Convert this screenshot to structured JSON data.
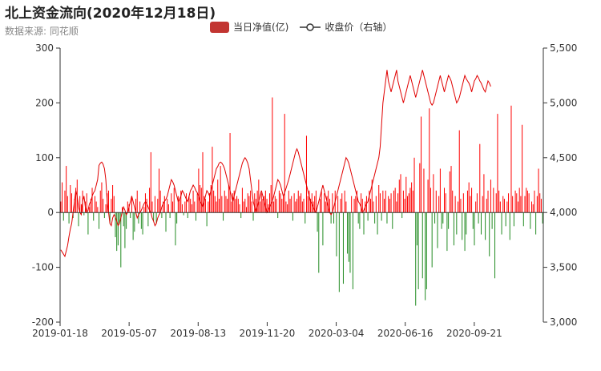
{
  "header": {
    "title": "北上资金流向(2020年12月18日)",
    "subtitle": "数据来源: 同花顺"
  },
  "legend": {
    "bar_label": "当日净值(亿)",
    "line_label": "收盘价（右轴）"
  },
  "colors": {
    "positive_bar": "#ff0000",
    "negative_bar": "#228b22",
    "line": "#e00000",
    "legend_bar": "#c23531",
    "axis": "#333333"
  },
  "chart_data": {
    "type": "bar+line",
    "x_ticks": [
      "2019-01-18",
      "2019-05-07",
      "2019-08-13",
      "2019-11-20",
      "2020-03-04",
      "2020-06-16",
      "2020-09-21"
    ],
    "left_axis": {
      "ylim": [
        -200,
        300
      ],
      "ticks": [
        "-200",
        "-100",
        "0",
        "100",
        "200",
        "300"
      ]
    },
    "right_axis": {
      "ylim": [
        3000,
        5500
      ],
      "ticks": [
        "3,000",
        "3,500",
        "4,000",
        "4,500",
        "5,000",
        "5,500"
      ]
    },
    "series": [
      {
        "name": "当日净值(亿)",
        "type": "bar",
        "values": [
          20,
          55,
          -15,
          40,
          85,
          30,
          -20,
          50,
          35,
          -10,
          25,
          45,
          60,
          -25,
          30,
          15,
          40,
          -5,
          20,
          35,
          -40,
          10,
          25,
          45,
          -15,
          30,
          20,
          10,
          -30,
          40,
          55,
          25,
          -10,
          15,
          35,
          40,
          -20,
          25,
          50,
          30,
          -45,
          -70,
          -60,
          -20,
          -100,
          10,
          -25,
          -65,
          -30,
          20,
          15,
          -10,
          30,
          -50,
          -35,
          25,
          40,
          -20,
          20,
          -30,
          -40,
          10,
          35,
          25,
          -25,
          45,
          110,
          20,
          -15,
          30,
          -20,
          25,
          80,
          40,
          -10,
          20,
          30,
          -35,
          25,
          15,
          -10,
          35,
          20,
          45,
          -60,
          -20,
          30,
          25,
          40,
          15,
          -5,
          20,
          35,
          -10,
          30,
          25,
          15,
          40,
          20,
          -15,
          35,
          80,
          50,
          45,
          110,
          30,
          25,
          -25,
          20,
          35,
          50,
          120,
          40,
          30,
          20,
          60,
          25,
          85,
          30,
          -15,
          40,
          30,
          25,
          50,
          145,
          20,
          35,
          40,
          25,
          30,
          25,
          15,
          -10,
          45,
          20,
          25,
          10,
          35,
          30,
          40,
          20,
          -15,
          35,
          25,
          40,
          60,
          20,
          35,
          25,
          30,
          40,
          25,
          15,
          35,
          50,
          210,
          20,
          30,
          25,
          -10,
          40,
          35,
          25,
          30,
          180,
          20,
          15,
          40,
          25,
          30,
          -15,
          35,
          20,
          25,
          40,
          30,
          35,
          20,
          25,
          -20,
          140,
          30,
          40,
          25,
          35,
          20,
          30,
          40,
          -35,
          -110,
          25,
          40,
          -60,
          35,
          20,
          30,
          40,
          25,
          -20,
          35,
          -20,
          40,
          -80,
          30,
          -145,
          25,
          35,
          -130,
          40,
          20,
          -75,
          -90,
          -110,
          30,
          -140,
          25,
          30,
          40,
          -20,
          -30,
          35,
          25,
          -40,
          20,
          30,
          -15,
          40,
          25,
          60,
          20,
          -20,
          30,
          -40,
          50,
          35,
          -15,
          40,
          25,
          40,
          -20,
          30,
          25,
          35,
          -30,
          40,
          45,
          20,
          35,
          60,
          70,
          -10,
          40,
          25,
          65,
          30,
          35,
          45,
          55,
          40,
          100,
          -170,
          -60,
          -140,
          90,
          175,
          -120,
          80,
          -160,
          -140,
          60,
          190,
          45,
          -100,
          70,
          -20,
          40,
          -65,
          30,
          80,
          -30,
          -20,
          45,
          35,
          -70,
          -30,
          75,
          85,
          40,
          -60,
          30,
          -40,
          20,
          150,
          25,
          -50,
          35,
          -70,
          -40,
          40,
          55,
          30,
          45,
          -30,
          -60,
          20,
          35,
          -20,
          125,
          -40,
          30,
          70,
          -50,
          25,
          40,
          -80,
          60,
          -30,
          45,
          -120,
          35,
          180,
          40,
          20,
          -40,
          30,
          25,
          -25,
          20,
          35,
          -50,
          195,
          30,
          -25,
          40,
          35,
          20,
          45,
          30,
          160,
          -25,
          30,
          45,
          40,
          35,
          -30,
          20,
          15,
          40,
          -40,
          30,
          80,
          35,
          25,
          -20
        ]
      },
      {
        "name": "收盘价（右轴）",
        "type": "line",
        "values": [
          3660,
          3640,
          3620,
          3600,
          3650,
          3700,
          3780,
          3850,
          3900,
          4000,
          4100,
          4200,
          4150,
          4050,
          4000,
          3980,
          4100,
          4150,
          4050,
          4000,
          4020,
          4080,
          4100,
          4150,
          4180,
          4200,
          4250,
          4300,
          4430,
          4450,
          4460,
          4440,
          4400,
          4300,
          4100,
          4000,
          3900,
          3880,
          3950,
          3980,
          3960,
          3920,
          3880,
          3900,
          3950,
          4000,
          4050,
          4020,
          3980,
          4000,
          4050,
          4100,
          4150,
          4100,
          4050,
          4000,
          3950,
          3980,
          4000,
          4020,
          4050,
          4080,
          4100,
          4080,
          4050,
          4020,
          4000,
          3950,
          3920,
          3880,
          3900,
          3950,
          3980,
          4000,
          4050,
          4080,
          4100,
          4120,
          4150,
          4200,
          4250,
          4300,
          4280,
          4250,
          4200,
          4150,
          4100,
          4120,
          4150,
          4200,
          4180,
          4150,
          4120,
          4100,
          4150,
          4200,
          4220,
          4250,
          4230,
          4200,
          4180,
          4150,
          4100,
          4080,
          4050,
          4100,
          4150,
          4200,
          4180,
          4150,
          4200,
          4250,
          4300,
          4350,
          4400,
          4420,
          4450,
          4460,
          4450,
          4430,
          4400,
          4350,
          4300,
          4250,
          4200,
          4150,
          4100,
          4150,
          4200,
          4250,
          4300,
          4350,
          4400,
          4450,
          4480,
          4500,
          4480,
          4450,
          4400,
          4300,
          4200,
          4100,
          4050,
          4000,
          4050,
          4100,
          4150,
          4200,
          4150,
          4100,
          4050,
          4000,
          4020,
          4050,
          4080,
          4100,
          4150,
          4200,
          4250,
          4300,
          4280,
          4250,
          4200,
          4150,
          4180,
          4220,
          4260,
          4300,
          4350,
          4400,
          4450,
          4500,
          4550,
          4580,
          4550,
          4500,
          4450,
          4400,
          4350,
          4300,
          4250,
          4200,
          4150,
          4100,
          4080,
          4050,
          4020,
          4000,
          4050,
          4100,
          4150,
          4200,
          4250,
          4200,
          4150,
          4100,
          4050,
          4000,
          3980,
          4000,
          4050,
          4100,
          4150,
          4200,
          4250,
          4300,
          4350,
          4400,
          4450,
          4500,
          4480,
          4450,
          4400,
          4350,
          4300,
          4250,
          4200,
          4150,
          4100,
          4080,
          4050,
          4000,
          4020,
          4050,
          4080,
          4100,
          4150,
          4200,
          4250,
          4300,
          4350,
          4400,
          4450,
          4500,
          4600,
          4800,
          5000,
          5100,
          5200,
          5300,
          5200,
          5150,
          5100,
          5150,
          5200,
          5250,
          5300,
          5200,
          5150,
          5100,
          5050,
          5000,
          5050,
          5100,
          5150,
          5200,
          5250,
          5200,
          5150,
          5100,
          5050,
          5100,
          5150,
          5200,
          5250,
          5300,
          5250,
          5200,
          5150,
          5100,
          5050,
          5000,
          4980,
          5000,
          5050,
          5100,
          5150,
          5200,
          5250,
          5200,
          5150,
          5100,
          5150,
          5200,
          5250,
          5230,
          5200,
          5150,
          5100,
          5050,
          5000,
          5020,
          5050,
          5100,
          5150,
          5200,
          5250,
          5220,
          5200,
          5180,
          5150,
          5100,
          5150,
          5200,
          5220,
          5250,
          5230,
          5200,
          5180,
          5150,
          5120,
          5100,
          5150,
          5200,
          5180,
          5150
        ]
      }
    ]
  }
}
